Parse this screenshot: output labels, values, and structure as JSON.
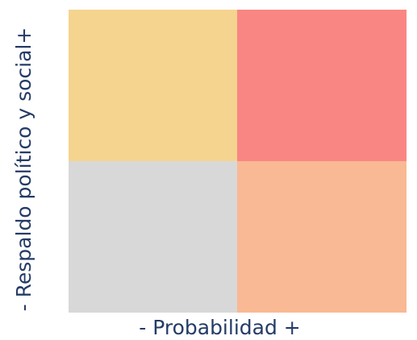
{
  "axes": {
    "x_label": "- Probabilidad +",
    "y_label": "- Respaldo político y social+"
  },
  "quadrants": {
    "top_left_color": "#f5d48f",
    "top_right_color": "#fa8683",
    "bottom_left_color": "#d8d8d8",
    "bottom_right_color": "#f9b994",
    "text_color": "#243b66"
  }
}
